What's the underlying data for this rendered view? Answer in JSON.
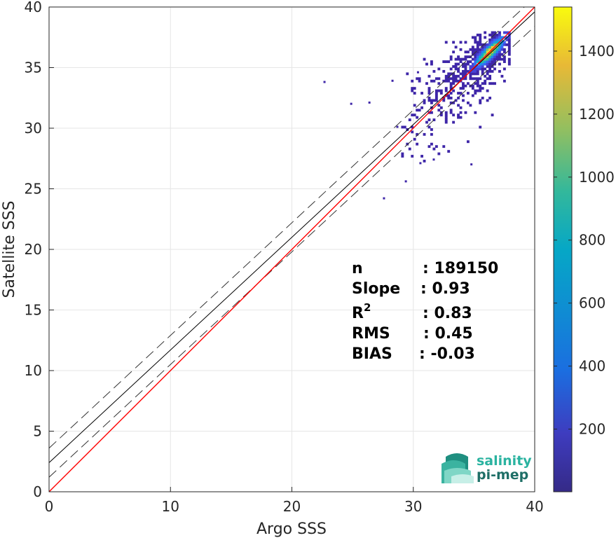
{
  "chart_data": {
    "type": "heatmap",
    "xlabel": "Argo SSS",
    "ylabel": "Satellite SSS",
    "xlim": [
      0,
      40
    ],
    "ylim": [
      0,
      40
    ],
    "x_ticks": [
      "0",
      "10",
      "20",
      "30",
      "40"
    ],
    "y_ticks": [
      "0",
      "5",
      "10",
      "15",
      "20",
      "25",
      "30",
      "35",
      "40"
    ],
    "grid": true,
    "colorbar": {
      "range": [
        1,
        1540
      ],
      "ticks": [
        "200",
        "400",
        "600",
        "800",
        "1000",
        "1200",
        "1400"
      ],
      "colormap": "parula"
    },
    "lines": {
      "identity": {
        "slope": 1,
        "intercept": 0,
        "color": "#ff0000"
      },
      "regression": {
        "slope": 0.93,
        "intercept": 2.4,
        "color": "#000000"
      },
      "regression_upper": {
        "slope": 0.93,
        "intercept": 3.6,
        "style": "dashed"
      },
      "regression_lower": {
        "slope": 0.93,
        "intercept": 1.2,
        "style": "dashed"
      }
    },
    "density": {
      "core_center": [
        36.2,
        36.2
      ],
      "x_range": [
        29,
        38
      ],
      "y_range": [
        27,
        38
      ]
    }
  },
  "stats": [
    {
      "label": "n",
      "value": ": 189150"
    },
    {
      "label": "Slope",
      "value": ": 0.93"
    },
    {
      "label": "R",
      "sup": "2",
      "value": ": 0.83"
    },
    {
      "label": "RMS",
      "value": ": 0.45"
    },
    {
      "label": "BIAS",
      "value": ": -0.03"
    }
  ],
  "logo": {
    "line1": "salinity",
    "line2": "pi-mep",
    "color1": "#2ab3a0",
    "color2": "#1f6f67"
  }
}
